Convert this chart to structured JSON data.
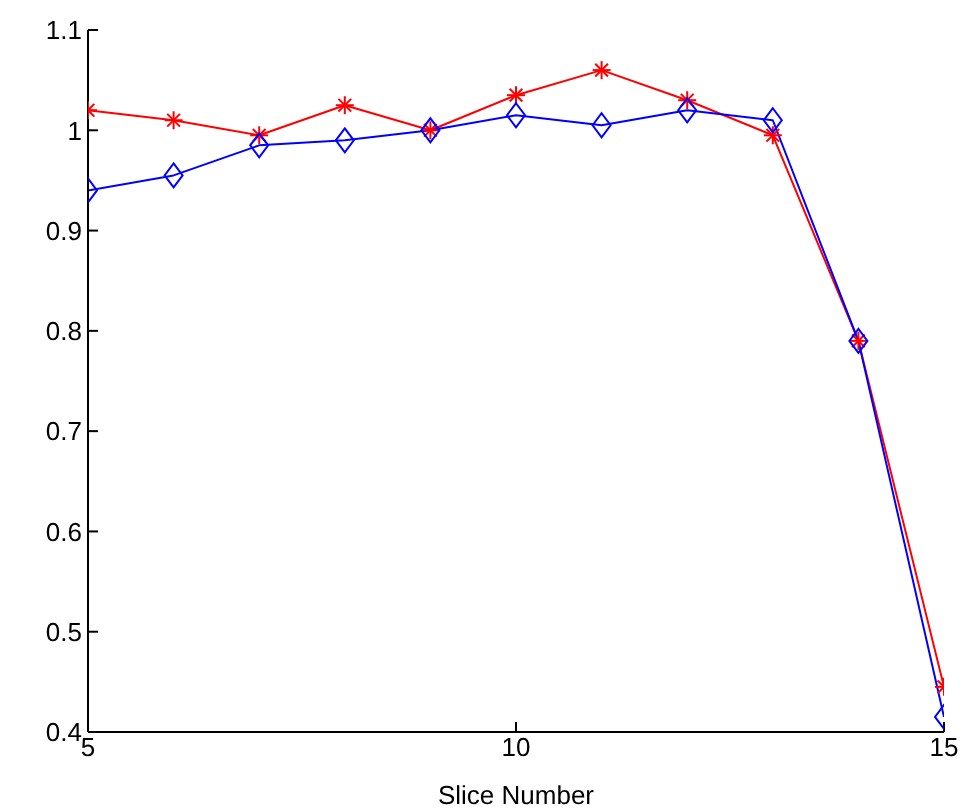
{
  "chart_data": {
    "type": "line",
    "xlabel": "Slice Number",
    "x": [
      5,
      6,
      7,
      8,
      9,
      10,
      11,
      12,
      13,
      14,
      15
    ],
    "series": [
      {
        "color": "#ff0000",
        "marker": "cross",
        "values": [
          1.02,
          1.01,
          0.995,
          1.025,
          1.0,
          1.035,
          1.06,
          1.03,
          0.995,
          0.79,
          0.445
        ]
      },
      {
        "color": "#0000ff",
        "marker": "diamond",
        "values": [
          0.94,
          0.955,
          0.985,
          0.99,
          1.0,
          1.015,
          1.005,
          1.02,
          1.01,
          0.79,
          0.415
        ]
      }
    ],
    "xlim": [
      5,
      15
    ],
    "xticks": [
      5,
      10,
      15
    ],
    "ylim": [
      0.4,
      1.1
    ],
    "yticks": [
      0.4,
      0.5,
      0.6,
      0.7,
      0.8,
      0.9,
      1,
      1.1
    ],
    "grid": false,
    "legend": false,
    "line_style": "solid"
  }
}
